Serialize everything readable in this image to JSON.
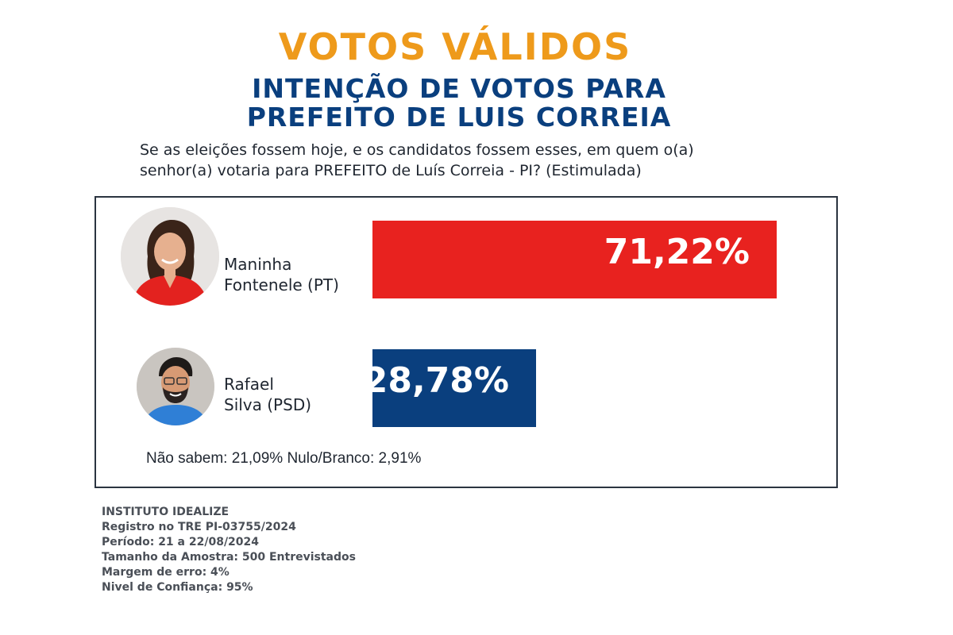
{
  "header": {
    "title": "VOTOS VÁLIDOS",
    "subtitle_line1": "INTENÇÃO DE VOTOS PARA",
    "subtitle_line2": "PREFEITO DE LUIS CORREIA",
    "question_line1": "Se as eleições fossem hoje, e os candidatos fossem esses, em quem o(a)",
    "question_line2": "senhor(a) votaria para PREFEITO de Luís Correia - PI? (Estimulada)"
  },
  "chart_data": {
    "type": "bar",
    "orientation": "horizontal",
    "categories": [
      "Maninha Fontenele (PT)",
      "Rafael Silva (PSD)"
    ],
    "values": [
      71.22,
      28.78
    ],
    "value_labels": [
      "71,22%",
      "28,78%"
    ],
    "candidates": [
      {
        "name_line1": "Maninha",
        "name_line2": "Fontenele (PT)",
        "value": 71.22,
        "label": "71,22%",
        "color": "#e8221f"
      },
      {
        "name_line1": "Rafael",
        "name_line2": "Silva (PSD)",
        "value": 28.78,
        "label": "28,78%",
        "color": "#0a3f7e"
      }
    ],
    "footnote": "Não sabem: 21,09% Nulo/Branco: 2,91%"
  },
  "source": {
    "institute": "INSTITUTO IDEALIZE",
    "registry": "Registro no TRE PI-03755/2024",
    "period": "Período: 21 a 22/08/2024",
    "sample": "Tamanho da Amostra: 500 Entrevistados",
    "margin": "Margem de erro: 4%",
    "confidence": "Nivel de Confiança: 95%"
  },
  "colors": {
    "title": "#ee9a1b",
    "subtitle": "#0a3f7e",
    "bar_1": "#e8221f",
    "bar_2": "#0a3f7e"
  }
}
